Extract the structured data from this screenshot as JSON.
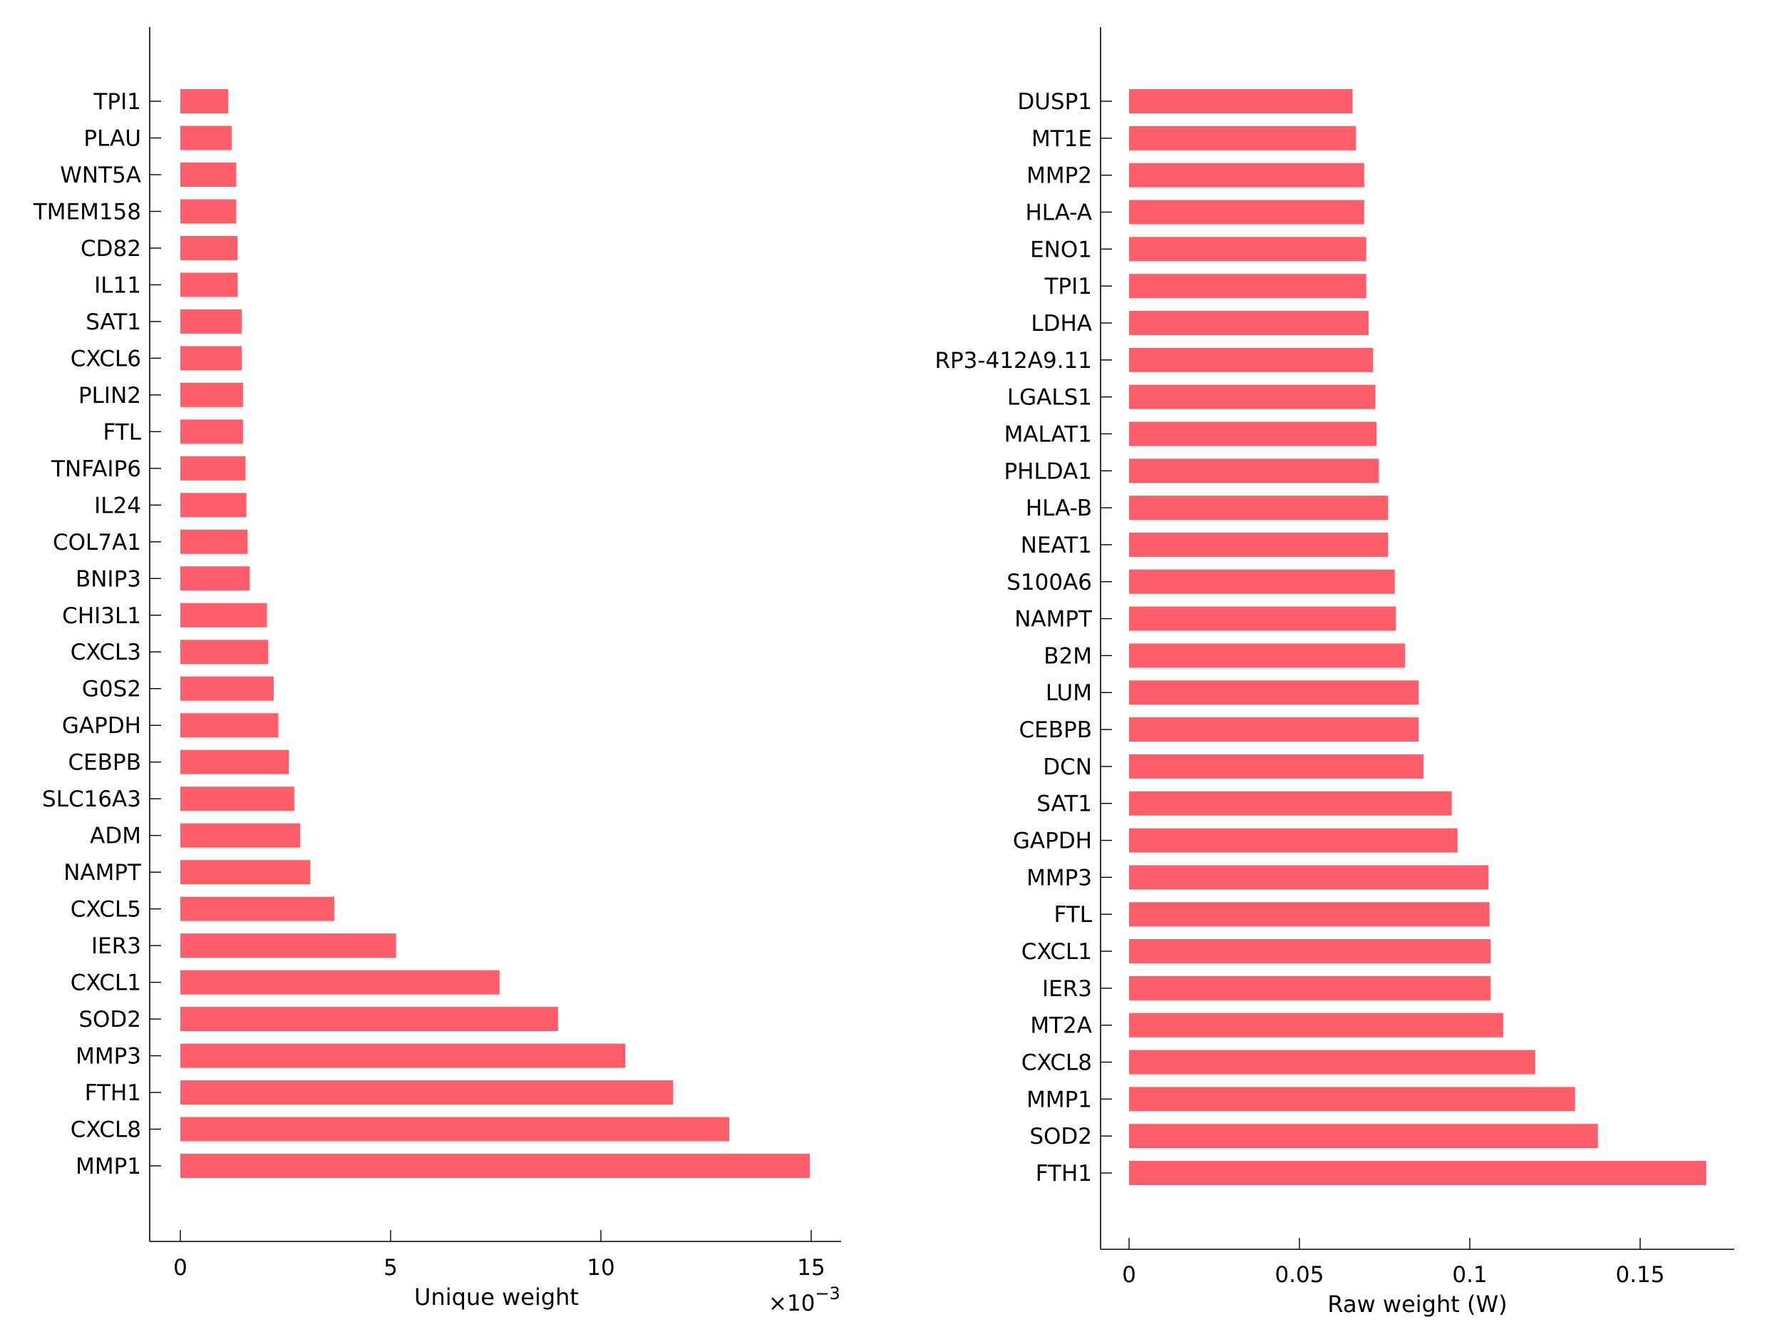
{
  "chart_data": [
    {
      "type": "bar",
      "orientation": "horizontal",
      "title": "",
      "xlabel": "Unique weight",
      "ylabel": "",
      "x_multiplier_label": "×10",
      "x_multiplier_exponent": "−3",
      "xlim": [
        -0.75,
        15.7
      ],
      "xticks": [
        0,
        5,
        10,
        15
      ],
      "xtick_labels": [
        "0",
        "5",
        "10",
        "15"
      ],
      "bar_color": "#fe5e6a",
      "grid": false,
      "categories": [
        "TPI1",
        "PLAU",
        "WNT5A",
        "TMEM158",
        "CD82",
        "IL11",
        "SAT1",
        "CXCL6",
        "PLIN2",
        "FTL",
        "TNFAIP6",
        "IL24",
        "COL7A1",
        "BNIP3",
        "CHI3L1",
        "CXCL3",
        "G0S2",
        "GAPDH",
        "CEBPB",
        "SLC16A3",
        "ADM",
        "NAMPT",
        "CXCL5",
        "IER3",
        "CXCL1",
        "SOD2",
        "MMP3",
        "FTH1",
        "CXCL8",
        "MMP1"
      ],
      "values": [
        1.14,
        1.22,
        1.33,
        1.33,
        1.36,
        1.36,
        1.46,
        1.46,
        1.49,
        1.49,
        1.55,
        1.57,
        1.6,
        1.65,
        2.06,
        2.09,
        2.22,
        2.33,
        2.58,
        2.71,
        2.85,
        3.09,
        3.66,
        5.13,
        7.59,
        8.98,
        10.58,
        11.72,
        13.05,
        14.97
      ]
    },
    {
      "type": "bar",
      "orientation": "horizontal",
      "title": "",
      "xlabel": "Raw weight (W)",
      "ylabel": "",
      "xlim": [
        -0.0083,
        0.1775
      ],
      "xticks": [
        0,
        0.05,
        0.1,
        0.15
      ],
      "xtick_labels": [
        "0",
        "0.05",
        "0.1",
        "0.15"
      ],
      "bar_color": "#fe5e6a",
      "grid": false,
      "categories": [
        "DUSP1",
        "MT1E",
        "MMP2",
        "HLA-A",
        "ENO1",
        "TPI1",
        "LDHA",
        "RP3-412A9.11",
        "LGALS1",
        "MALAT1",
        "PHLDA1",
        "HLA-B",
        "NEAT1",
        "S100A6",
        "NAMPT",
        "B2M",
        "LUM",
        "CEBPB",
        "DCN",
        "SAT1",
        "GAPDH",
        "MMP3",
        "FTL",
        "CXCL1",
        "IER3",
        "MT2A",
        "CXCL8",
        "MMP1",
        "SOD2",
        "FTH1"
      ],
      "values": [
        0.0656,
        0.0666,
        0.069,
        0.069,
        0.0696,
        0.0696,
        0.0703,
        0.0716,
        0.0723,
        0.0726,
        0.0733,
        0.076,
        0.076,
        0.078,
        0.0783,
        0.081,
        0.085,
        0.085,
        0.0864,
        0.0947,
        0.0964,
        0.1055,
        0.1058,
        0.1061,
        0.1061,
        0.1098,
        0.1192,
        0.1309,
        0.1376,
        0.1694
      ]
    }
  ]
}
